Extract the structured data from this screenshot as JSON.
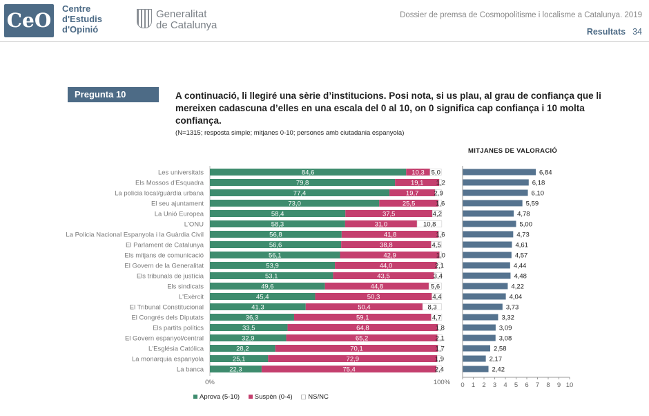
{
  "header": {
    "logo_mark": "CeO",
    "org_line1": "Centre",
    "org_line2": "d'Estudis",
    "org_line3": "d'Opinió",
    "gen_line1": "Generalitat",
    "gen_line2": "de Catalunya",
    "dossier": "Dossier de premsa de Cosmopolitisme i localisme a Catalunya. 2019",
    "section": "Resultats",
    "page": "34"
  },
  "question": {
    "badge": "Pregunta 10",
    "text": "A continuació, li llegiré una sèrie d’institucions. Posi nota, si us plau, al grau de confiança que li mereixen cadascuna d’elles en una escala del 0 al 10, on 0 significa cap confiança i 10 molta confiança.",
    "note": "(N=1315; resposta simple; mitjanes 0-10; persones amb ciutadania espanyola)"
  },
  "means_title": "MITJANES DE VALORACIÓ",
  "colors": {
    "aprova": "#3e8c6e",
    "suspen": "#c43f6e",
    "nsnc": "#ffffff",
    "mean": "#55738f"
  },
  "legend": {
    "aprova": "Aprova (5-10)",
    "suspen": "Suspèn (0-4)",
    "nsnc": "NS/NC"
  },
  "chart_data": [
    {
      "type": "bar",
      "stacked": true,
      "orientation": "horizontal",
      "categories": [
        "Les universitats",
        "Els Mossos d'Esquadra",
        "La policia local/guàrdia urbana",
        "El seu ajuntament",
        "La Unió Europea",
        "L'ONU",
        "La Policia Nacional Espanyola i la Guàrdia Civil",
        "El Parlament de Catalunya",
        "Els mitjans de comunicació",
        "El Govern de la Generalitat",
        "Els tribunals de justícia",
        "Els sindicats",
        "L'Exèrcit",
        "El Tribunal Constitucional",
        "El Congrés dels Diputats",
        "Els partits polítics",
        "El Govern espanyol/central",
        "L'Església Católica",
        "La monarquia espanyola",
        "La banca"
      ],
      "series": [
        {
          "name": "Aprova (5-10)",
          "values": [
            84.6,
            79.8,
            77.4,
            73.0,
            58.4,
            58.3,
            56.8,
            56.6,
            56.1,
            53.9,
            53.1,
            49.6,
            45.4,
            41.3,
            36.3,
            33.5,
            32.9,
            28.2,
            25.1,
            22.3
          ]
        },
        {
          "name": "Suspèn (0-4)",
          "values": [
            10.3,
            19.1,
            19.7,
            25.5,
            37.5,
            31.0,
            41.8,
            38.8,
            42.9,
            44.0,
            43.5,
            44.8,
            50.3,
            50.4,
            59.1,
            64.8,
            65.2,
            70.1,
            72.9,
            75.4
          ]
        },
        {
          "name": "NS/NC",
          "values": [
            5.0,
            1.2,
            2.9,
            1.6,
            4.2,
            10.8,
            1.6,
            4.5,
            1.0,
            2.1,
            3.4,
            5.6,
            4.4,
            8.3,
            4.7,
            1.8,
            2.1,
            1.7,
            1.9,
            2.4
          ]
        }
      ],
      "labels_aprova": [
        "84,6",
        "79,8",
        "77,4",
        "73,0",
        "58,4",
        "58,3",
        "56,8",
        "56,6",
        "56,1",
        "53,9",
        "53,1",
        "49,6",
        "45,4",
        "41,3",
        "36,3",
        "33,5",
        "32,9",
        "28,2",
        "25,1",
        "22,3"
      ],
      "labels_suspen": [
        "10,3",
        "19,1",
        "19,7",
        "25,5",
        "37,5",
        "31,0",
        "41,8",
        "38,8",
        "42,9",
        "44,0",
        "43,5",
        "44,8",
        "50,3",
        "50,4",
        "59,1",
        "64,8",
        "65,2",
        "70,1",
        "72,9",
        "75,4"
      ],
      "labels_nsnc": [
        "5,0",
        "1,2",
        "2,9",
        "1,6",
        "4,2",
        "10,8",
        "1,6",
        "4,5",
        "1,0",
        "2,1",
        "3,4",
        "5,6",
        "4,4",
        "8,3",
        "4,7",
        "1,8",
        "2,1",
        "1,7",
        "1,9",
        "2,4"
      ],
      "xticks": [
        "0%",
        "100%"
      ],
      "xlim": [
        0,
        100
      ]
    },
    {
      "type": "bar",
      "orientation": "horizontal",
      "title": "MITJANES DE VALORACIÓ",
      "categories": [
        "Les universitats",
        "Els Mossos d'Esquadra",
        "La policia local/guàrdia urbana",
        "El seu ajuntament",
        "La Unió Europea",
        "L'ONU",
        "La Policia Nacional Espanyola i la Guàrdia Civil",
        "El Parlament de Catalunya",
        "Els mitjans de comunicació",
        "El Govern de la Generalitat",
        "Els tribunals de justícia",
        "Els sindicats",
        "L'Exèrcit",
        "El Tribunal Constitucional",
        "El Congrés dels Diputats",
        "Els partits polítics",
        "El Govern espanyol/central",
        "L'Església Católica",
        "La monarquia espanyola",
        "La banca"
      ],
      "values": [
        6.84,
        6.18,
        6.1,
        5.59,
        4.78,
        5.0,
        4.73,
        4.61,
        4.57,
        4.44,
        4.48,
        4.22,
        4.04,
        3.73,
        3.32,
        3.09,
        3.08,
        2.58,
        2.17,
        2.42
      ],
      "labels": [
        "6,84",
        "6,18",
        "6,10",
        "5,59",
        "4,78",
        "5,00",
        "4,73",
        "4,61",
        "4,57",
        "4,44",
        "4,48",
        "4,22",
        "4,04",
        "3,73",
        "3,32",
        "3,09",
        "3,08",
        "2,58",
        "2,17",
        "2,42"
      ],
      "xticks": [
        "0",
        "1",
        "2",
        "3",
        "4",
        "5",
        "6",
        "7",
        "8",
        "9",
        "10"
      ],
      "xlim": [
        0,
        10
      ]
    }
  ]
}
